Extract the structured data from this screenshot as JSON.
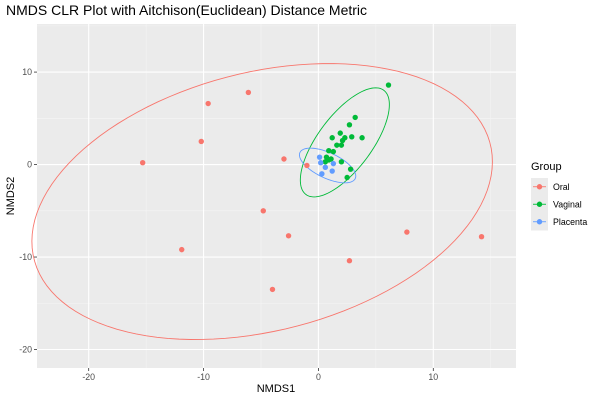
{
  "chart_data": {
    "type": "scatter",
    "title": "NMDS CLR Plot with Aitchison(Euclidean) Distance Metric",
    "xlabel": "NMDS1",
    "ylabel": "NMDS2",
    "xlim": [
      -24.5,
      17.2
    ],
    "ylim": [
      -22.0,
      15.2
    ],
    "x_ticks": [
      -20,
      -10,
      0,
      10
    ],
    "y_ticks": [
      -20,
      -10,
      0,
      10
    ],
    "grid": true,
    "panel_background": "#ebebeb",
    "legend": {
      "title": "Group",
      "position": "right"
    },
    "series": [
      {
        "name": "Oral",
        "color": "#f8766d",
        "points": [
          {
            "x": -15.3,
            "y": 0.2
          },
          {
            "x": -10.2,
            "y": 2.5
          },
          {
            "x": -9.6,
            "y": 6.6
          },
          {
            "x": -6.1,
            "y": 7.8
          },
          {
            "x": -3.0,
            "y": 0.6
          },
          {
            "x": -1.0,
            "y": -0.1
          },
          {
            "x": -4.8,
            "y": -5.0
          },
          {
            "x": -2.6,
            "y": -7.7
          },
          {
            "x": -11.9,
            "y": -9.2
          },
          {
            "x": -4.0,
            "y": -13.5
          },
          {
            "x": 2.7,
            "y": -10.4
          },
          {
            "x": 7.7,
            "y": -7.3
          },
          {
            "x": 14.2,
            "y": -7.8
          }
        ],
        "ellipse": {
          "cx": -4.9,
          "cy": -4.0,
          "rx": 20.9,
          "ry": 13.7,
          "angle_deg": 22
        }
      },
      {
        "name": "Vaginal",
        "color": "#00ba38",
        "points": [
          {
            "x": 6.1,
            "y": 8.6
          },
          {
            "x": 3.2,
            "y": 5.1
          },
          {
            "x": 2.7,
            "y": 4.3
          },
          {
            "x": 1.9,
            "y": 3.4
          },
          {
            "x": 2.3,
            "y": 2.9
          },
          {
            "x": 1.2,
            "y": 2.9
          },
          {
            "x": 2.1,
            "y": 2.6
          },
          {
            "x": 2.9,
            "y": 3.0
          },
          {
            "x": 3.8,
            "y": 2.9
          },
          {
            "x": 1.6,
            "y": 2.1
          },
          {
            "x": 2.0,
            "y": 2.1
          },
          {
            "x": 0.9,
            "y": 1.5
          },
          {
            "x": 1.3,
            "y": 1.4
          },
          {
            "x": 0.7,
            "y": 0.8
          },
          {
            "x": 1.1,
            "y": 0.6
          },
          {
            "x": 0.9,
            "y": 0.5
          },
          {
            "x": 0.6,
            "y": 0.3
          },
          {
            "x": 2.0,
            "y": 0.3
          },
          {
            "x": 2.8,
            "y": -0.5
          },
          {
            "x": 2.5,
            "y": -1.4
          }
        ],
        "ellipse": {
          "cx": 2.3,
          "cy": 2.4,
          "rx": 6.6,
          "ry": 2.5,
          "angle_deg": 61
        }
      },
      {
        "name": "Placenta",
        "color": "#619cff",
        "points": [
          {
            "x": 0.1,
            "y": 0.8
          },
          {
            "x": 0.2,
            "y": 0.2
          },
          {
            "x": 1.3,
            "y": 0.1
          },
          {
            "x": 0.6,
            "y": -0.3
          },
          {
            "x": 1.2,
            "y": -0.7
          },
          {
            "x": 0.3,
            "y": -1.0
          }
        ],
        "ellipse": {
          "cx": 0.8,
          "cy": -0.1,
          "rx": 2.8,
          "ry": 1.3,
          "angle_deg": -33
        }
      }
    ]
  }
}
